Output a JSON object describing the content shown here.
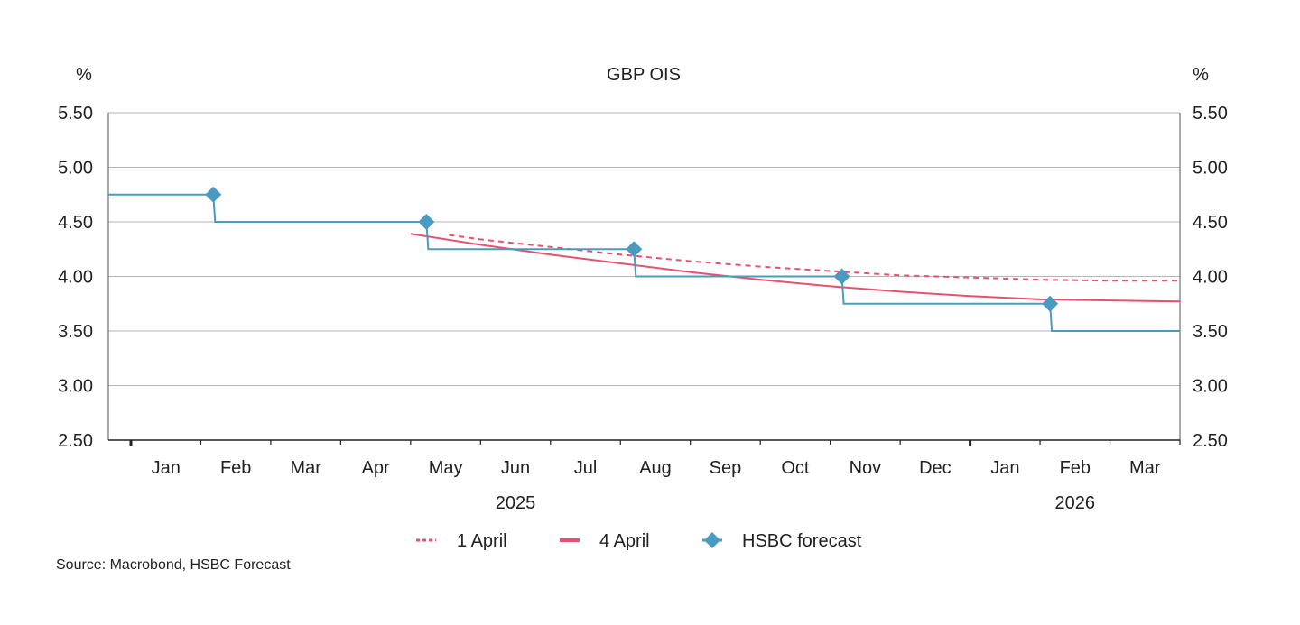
{
  "chart_data": {
    "type": "line",
    "title": "GBP OIS",
    "ylabel_left": "%",
    "ylabel_right": "%",
    "ylim": [
      2.5,
      5.5
    ],
    "yticks": [
      "5.50",
      "5.00",
      "4.50",
      "4.00",
      "3.50",
      "3.00",
      "2.50"
    ],
    "xlim": [
      "2024-12-22",
      "2026-04-01"
    ],
    "month_labels": [
      "Jan",
      "Feb",
      "Mar",
      "Apr",
      "May",
      "Jun",
      "Jul",
      "Aug",
      "Sep",
      "Oct",
      "Nov",
      "Dec",
      "Jan",
      "Feb",
      "Mar"
    ],
    "year_labels": [
      "2025",
      "2026"
    ],
    "grid": true,
    "legend_position": "bottom",
    "colors": {
      "red": "#e8506f",
      "blue": "#4a9bbf",
      "grid": "#b5b5b5"
    },
    "series": [
      {
        "name": "1 April",
        "style": "dotted",
        "color": "#e8506f",
        "points": [
          [
            "2025-05-18",
            4.38
          ],
          [
            "2025-06-01",
            4.34
          ],
          [
            "2025-07-01",
            4.27
          ],
          [
            "2025-08-01",
            4.2
          ],
          [
            "2025-09-01",
            4.14
          ],
          [
            "2025-10-01",
            4.09
          ],
          [
            "2025-11-01",
            4.05
          ],
          [
            "2025-12-01",
            4.01
          ],
          [
            "2026-01-01",
            3.99
          ],
          [
            "2026-02-01",
            3.97
          ],
          [
            "2026-03-01",
            3.96
          ],
          [
            "2026-04-01",
            3.96
          ]
        ]
      },
      {
        "name": "4 April",
        "style": "solid",
        "color": "#e8506f",
        "points": [
          [
            "2025-05-01",
            4.39
          ],
          [
            "2025-06-01",
            4.29
          ],
          [
            "2025-07-01",
            4.2
          ],
          [
            "2025-08-01",
            4.12
          ],
          [
            "2025-09-01",
            4.04
          ],
          [
            "2025-10-01",
            3.97
          ],
          [
            "2025-11-01",
            3.91
          ],
          [
            "2025-12-01",
            3.86
          ],
          [
            "2026-01-01",
            3.82
          ],
          [
            "2026-02-01",
            3.79
          ],
          [
            "2026-03-01",
            3.78
          ],
          [
            "2026-04-01",
            3.77
          ]
        ]
      },
      {
        "name": "HSBC forecast",
        "style": "step-diamond",
        "color": "#4a9bbf",
        "start_value": 4.75,
        "end_value": 3.5,
        "points": [
          [
            "2025-02-06",
            4.75
          ],
          [
            "2025-05-08",
            4.5
          ],
          [
            "2025-08-07",
            4.25
          ],
          [
            "2025-11-06",
            4.0
          ],
          [
            "2026-02-05",
            3.75
          ]
        ]
      }
    ]
  },
  "source": "Source: Macrobond, HSBC Forecast"
}
